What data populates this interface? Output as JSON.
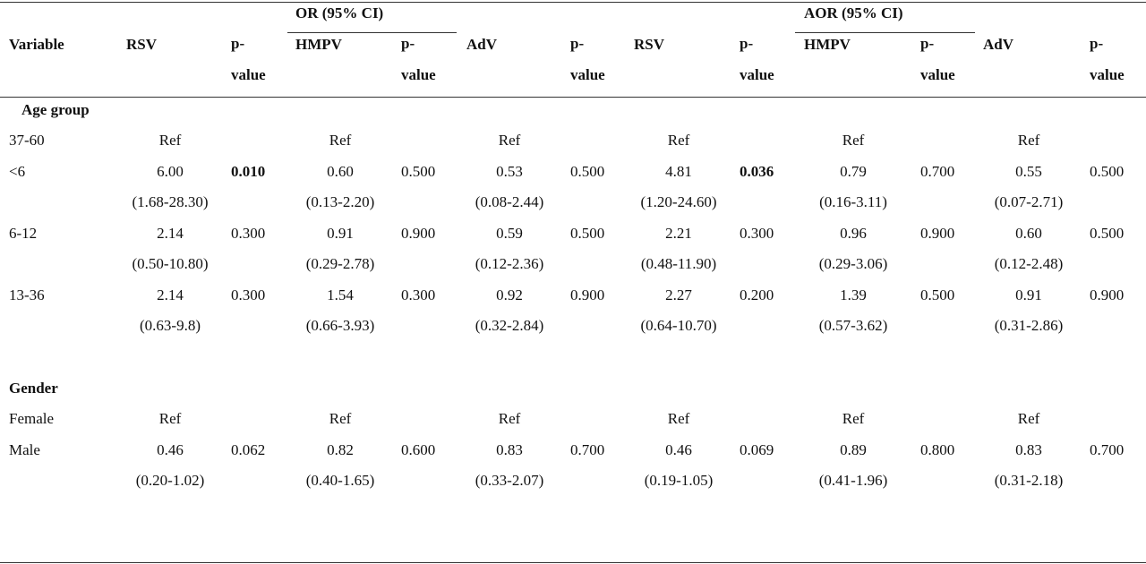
{
  "header": {
    "variable": "Variable",
    "or_group": "OR (95% CI)",
    "aor_group": "AOR (95% CI)",
    "columns": [
      "RSV",
      "p-value",
      "HMPV",
      "p-value",
      "AdV",
      "p-value",
      "RSV",
      "p-value",
      "HMPV",
      "p-value",
      "AdV",
      "p-value"
    ],
    "pvalue_label_top": "p-",
    "pvalue_label_bottom": "value"
  },
  "sections": [
    {
      "title": "Age group",
      "rows": [
        {
          "label": "37-60",
          "cells": [
            {
              "est": "Ref",
              "ci": ""
            },
            {
              "p": ""
            },
            {
              "est": "Ref",
              "ci": ""
            },
            {
              "p": ""
            },
            {
              "est": "Ref",
              "ci": ""
            },
            {
              "p": ""
            },
            {
              "est": "Ref",
              "ci": ""
            },
            {
              "p": ""
            },
            {
              "est": "Ref",
              "ci": ""
            },
            {
              "p": ""
            },
            {
              "est": "Ref",
              "ci": ""
            },
            {
              "p": ""
            }
          ]
        },
        {
          "label": "<6",
          "cells": [
            {
              "est": "6.00",
              "ci": "(1.68-28.30)"
            },
            {
              "p": "0.010",
              "bold": true
            },
            {
              "est": "0.60",
              "ci": "(0.13-2.20)"
            },
            {
              "p": "0.500"
            },
            {
              "est": "0.53",
              "ci": "(0.08-2.44)"
            },
            {
              "p": "0.500"
            },
            {
              "est": "4.81",
              "ci": "(1.20-24.60)"
            },
            {
              "p": "0.036",
              "bold": true
            },
            {
              "est": "0.79",
              "ci": "(0.16-3.11)"
            },
            {
              "p": "0.700"
            },
            {
              "est": "0.55",
              "ci": "(0.07-2.71)"
            },
            {
              "p": "0.500"
            }
          ]
        },
        {
          "label": "6-12",
          "cells": [
            {
              "est": "2.14",
              "ci": "(0.50-10.80)"
            },
            {
              "p": "0.300"
            },
            {
              "est": "0.91",
              "ci": "(0.29-2.78)"
            },
            {
              "p": "0.900"
            },
            {
              "est": "0.59",
              "ci": "(0.12-2.36)"
            },
            {
              "p": "0.500"
            },
            {
              "est": "2.21",
              "ci": "(0.48-11.90)"
            },
            {
              "p": "0.300"
            },
            {
              "est": "0.96",
              "ci": "(0.29-3.06)"
            },
            {
              "p": "0.900"
            },
            {
              "est": "0.60",
              "ci": "(0.12-2.48)"
            },
            {
              "p": "0.500"
            }
          ]
        },
        {
          "label": "13-36",
          "cells": [
            {
              "est": "2.14",
              "ci": "(0.63-9.8)"
            },
            {
              "p": "0.300"
            },
            {
              "est": "1.54",
              "ci": "(0.66-3.93)"
            },
            {
              "p": "0.300"
            },
            {
              "est": "0.92",
              "ci": "(0.32-2.84)"
            },
            {
              "p": "0.900"
            },
            {
              "est": "2.27",
              "ci": "(0.64-10.70)"
            },
            {
              "p": "0.200"
            },
            {
              "est": "1.39",
              "ci": "(0.57-3.62)"
            },
            {
              "p": "0.500"
            },
            {
              "est": "0.91",
              "ci": "(0.31-2.86)"
            },
            {
              "p": "0.900"
            }
          ]
        }
      ]
    },
    {
      "title": "Gender",
      "rows": [
        {
          "label": "Female",
          "cells": [
            {
              "est": "Ref",
              "ci": ""
            },
            {
              "p": ""
            },
            {
              "est": "Ref",
              "ci": ""
            },
            {
              "p": ""
            },
            {
              "est": "Ref",
              "ci": ""
            },
            {
              "p": ""
            },
            {
              "est": "Ref",
              "ci": ""
            },
            {
              "p": ""
            },
            {
              "est": "Ref",
              "ci": ""
            },
            {
              "p": ""
            },
            {
              "est": "Ref",
              "ci": ""
            },
            {
              "p": ""
            }
          ]
        },
        {
          "label": "Male",
          "cells": [
            {
              "est": "0.46",
              "ci": "(0.20-1.02)"
            },
            {
              "p": "0.062"
            },
            {
              "est": "0.82",
              "ci": "(0.40-1.65)"
            },
            {
              "p": "0.600"
            },
            {
              "est": "0.83",
              "ci": "(0.33-2.07)"
            },
            {
              "p": "0.700"
            },
            {
              "est": "0.46",
              "ci": "(0.19-1.05)"
            },
            {
              "p": "0.069"
            },
            {
              "est": "0.89",
              "ci": "(0.41-1.96)"
            },
            {
              "p": "0.800"
            },
            {
              "est": "0.83",
              "ci": "(0.31-2.18)"
            },
            {
              "p": "0.700"
            }
          ]
        }
      ]
    }
  ]
}
